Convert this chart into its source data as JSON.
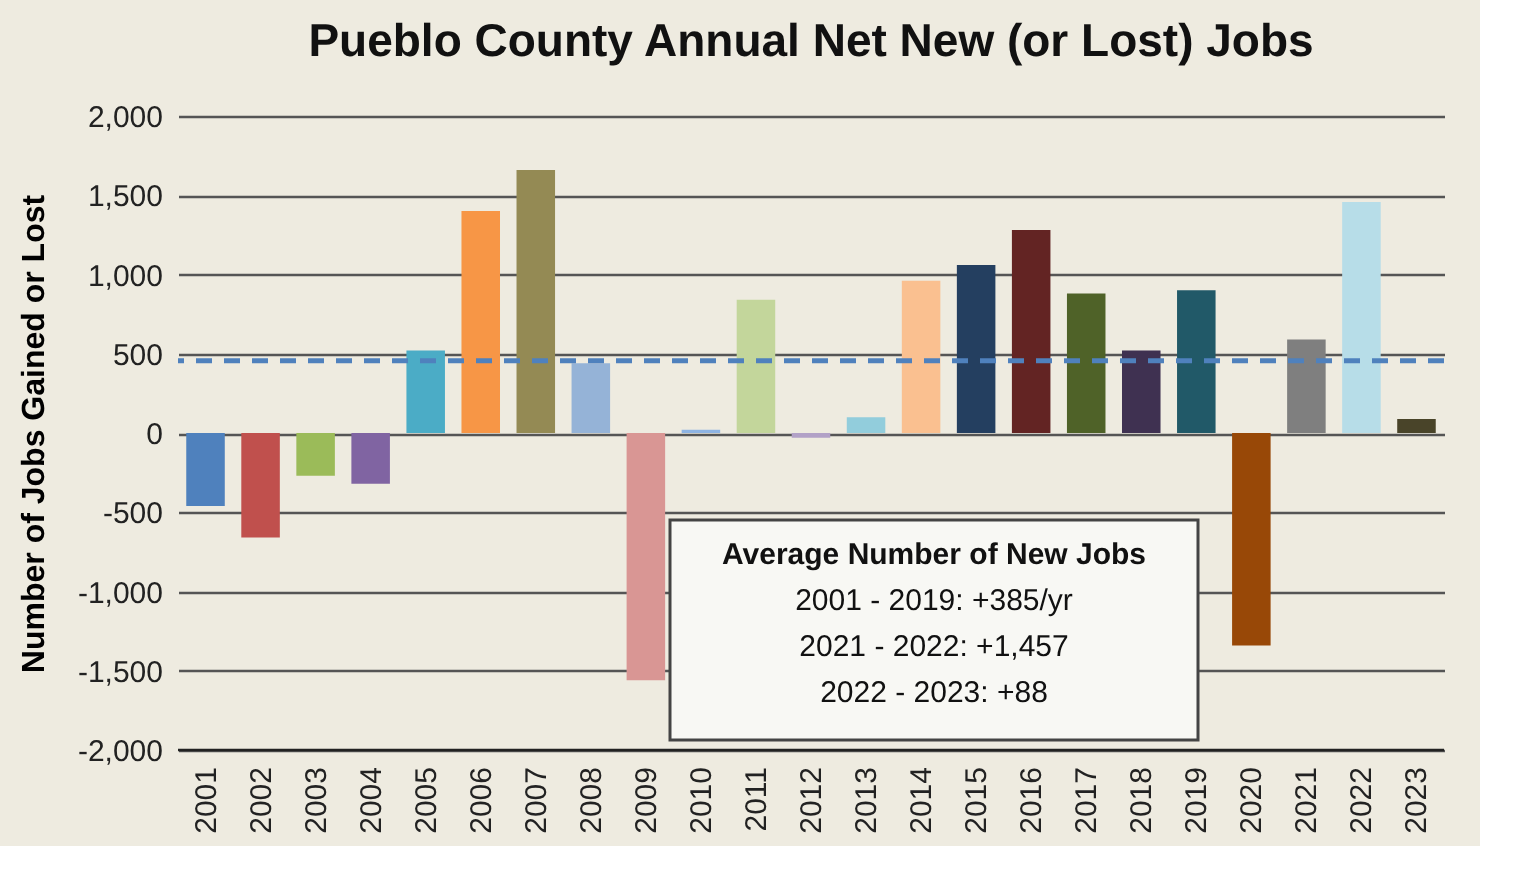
{
  "chart_data": {
    "type": "bar",
    "title": "Pueblo County Annual Net New (or Lost) Jobs",
    "ylabel": "Number of Jobs Gained or Lost",
    "categories": [
      "2001",
      "2002",
      "2003",
      "2004",
      "2005",
      "2006",
      "2007",
      "2008",
      "2009",
      "2010",
      "2011",
      "2012",
      "2013",
      "2014",
      "2015",
      "2016",
      "2017",
      "2018",
      "2019",
      "2020",
      "2021",
      "2022",
      "2023"
    ],
    "values": [
      -460,
      -660,
      -270,
      -320,
      520,
      1400,
      1660,
      440,
      -1560,
      20,
      840,
      -30,
      100,
      960,
      1060,
      1280,
      880,
      520,
      900,
      -1340,
      590,
      1457,
      88
    ],
    "colors": [
      "#4f81bd",
      "#c0504d",
      "#9bbb59",
      "#8064a2",
      "#4bacc6",
      "#f79646",
      "#948a54",
      "#95b3d7",
      "#d99694",
      "#8eb4e3",
      "#c3d69b",
      "#b2a1c7",
      "#92cddc",
      "#fac090",
      "#243f60",
      "#632423",
      "#4f6228",
      "#3f3151",
      "#215968",
      "#984807",
      "#7f7f7f",
      "#b7dde8",
      "#494429"
    ],
    "ylim": [
      -2000,
      2000
    ],
    "yticks": [
      {
        "value": -2000,
        "label": "-2,000"
      },
      {
        "value": -1500,
        "label": "-1,500"
      },
      {
        "value": -1000,
        "label": "-1,000"
      },
      {
        "value": -500,
        "label": "-500"
      },
      0,
      500,
      {
        "value": 1000,
        "label": "1,000"
      },
      {
        "value": 1500,
        "label": "1,500"
      },
      {
        "value": 2000,
        "label": "2,000"
      }
    ],
    "grid": "y",
    "ref_lines": [
      {
        "axis": "y",
        "value": 456,
        "color": "#4f81bd",
        "line_style": "dashed"
      }
    ],
    "annotations": [
      "Average Number of New Jobs",
      "2001 - 2019: +385/yr",
      "2021 - 2022: +1,457",
      "2022 - 2023: +88"
    ]
  }
}
